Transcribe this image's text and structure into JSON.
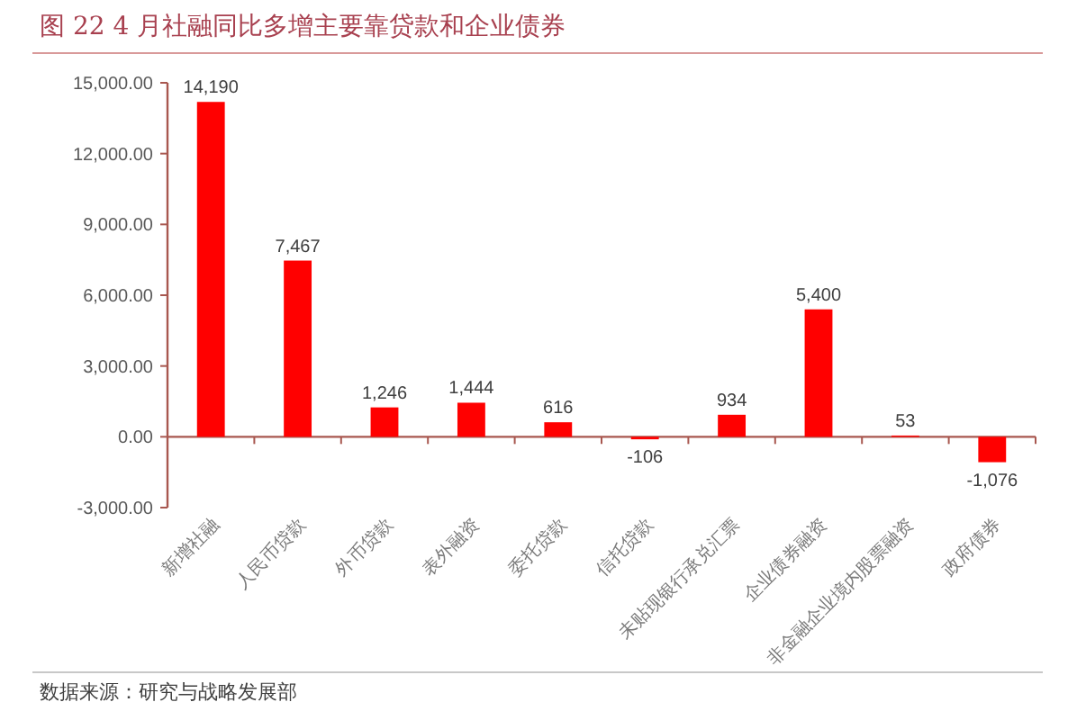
{
  "chart_data": {
    "type": "bar",
    "title": "图 22 4 月社融同比多增主要靠贷款和企业债券",
    "categories": [
      "新增社融",
      "人民币贷款",
      "外币贷款",
      "表外融资",
      "委托贷款",
      "信托贷款",
      "未贴现银行承兑汇票",
      "企业债券融资",
      "非金融企业境内股票融资",
      "政府债券"
    ],
    "values": [
      14190,
      7467,
      1246,
      1444,
      616,
      -106,
      934,
      5400,
      53,
      -1076
    ],
    "value_labels": [
      "14,190",
      "7,467",
      "1,246",
      "1,444",
      "616",
      "-106",
      "934",
      "5,400",
      "53",
      "-1,076"
    ],
    "color": "#ff0000",
    "ylim": [
      -3000,
      15000
    ],
    "yticks": [
      {
        "value": -3000,
        "label": "-3,000.00"
      },
      {
        "value": 0,
        "label": "0.00"
      },
      {
        "value": 3000,
        "label": "3,000.00"
      },
      {
        "value": 6000,
        "label": "6,000.00"
      },
      {
        "value": 9000,
        "label": "9,000.00"
      },
      {
        "value": 12000,
        "label": "12,000.00"
      },
      {
        "value": 15000,
        "label": "15,000.00"
      }
    ],
    "ref_lines": [
      {
        "axis": "y",
        "value": 0,
        "color": "#a8574f"
      }
    ],
    "annotations": [
      "数据来源：研究与战略发展部"
    ]
  }
}
